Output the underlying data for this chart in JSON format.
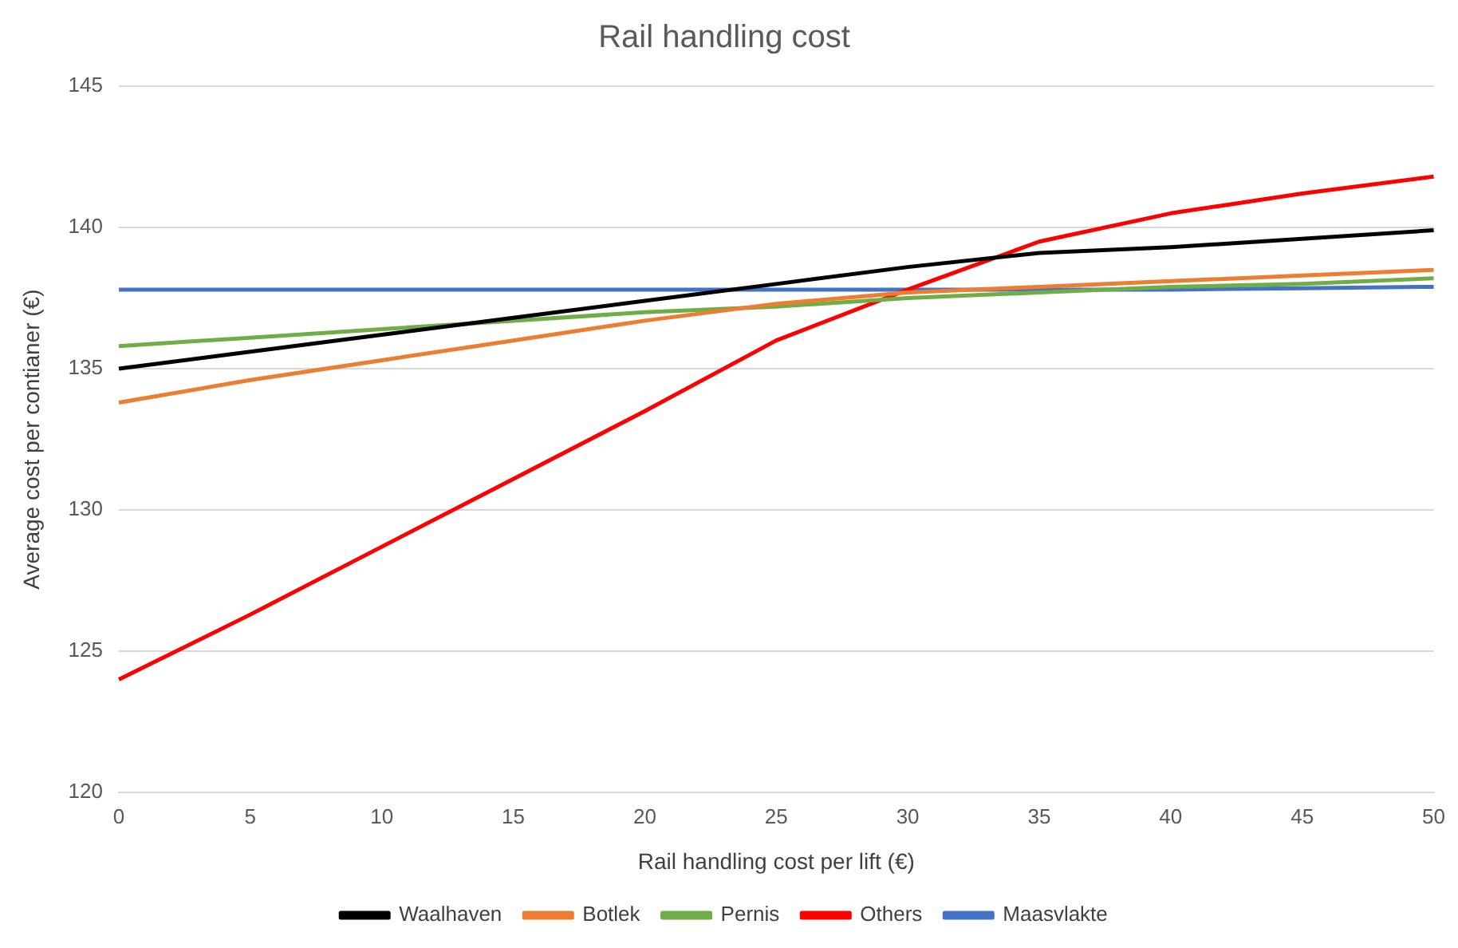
{
  "chart_data": {
    "type": "line",
    "title": "Rail handling cost",
    "xlabel": "Rail handling cost per lift (€)",
    "ylabel": "Average cost per contianer (€)",
    "categories": [
      "0",
      "5",
      "10",
      "15",
      "20",
      "25",
      "30",
      "35",
      "40",
      "45",
      "50"
    ],
    "series": [
      {
        "name": "Waalhaven",
        "color": "#000000",
        "values": [
          135.0,
          135.6,
          136.2,
          136.8,
          137.4,
          138.0,
          138.6,
          139.1,
          139.3,
          139.6,
          139.9
        ]
      },
      {
        "name": "Botlek",
        "color": "#ed7d31",
        "values": [
          133.8,
          134.6,
          135.3,
          136.0,
          136.7,
          137.3,
          137.7,
          137.9,
          138.1,
          138.3,
          138.5
        ]
      },
      {
        "name": "Pernis",
        "color": "#70ad47",
        "values": [
          135.8,
          136.1,
          136.4,
          136.7,
          137.0,
          137.2,
          137.5,
          137.7,
          137.9,
          138.0,
          138.2
        ]
      },
      {
        "name": "Others",
        "color": "#ff0000",
        "values": [
          124.0,
          126.3,
          128.7,
          131.1,
          133.5,
          136.0,
          137.8,
          139.5,
          140.5,
          141.2,
          141.8
        ]
      },
      {
        "name": "Maasvlakte",
        "color": "#4472c4",
        "values": [
          137.8,
          137.8,
          137.8,
          137.8,
          137.8,
          137.8,
          137.8,
          137.8,
          137.8,
          137.85,
          137.9
        ]
      }
    ],
    "ylim": [
      120,
      145
    ],
    "yticks": [
      120,
      125,
      130,
      135,
      140,
      145
    ],
    "grid": "y",
    "legend": "bottom",
    "marker": "none",
    "line_style": "solid"
  }
}
